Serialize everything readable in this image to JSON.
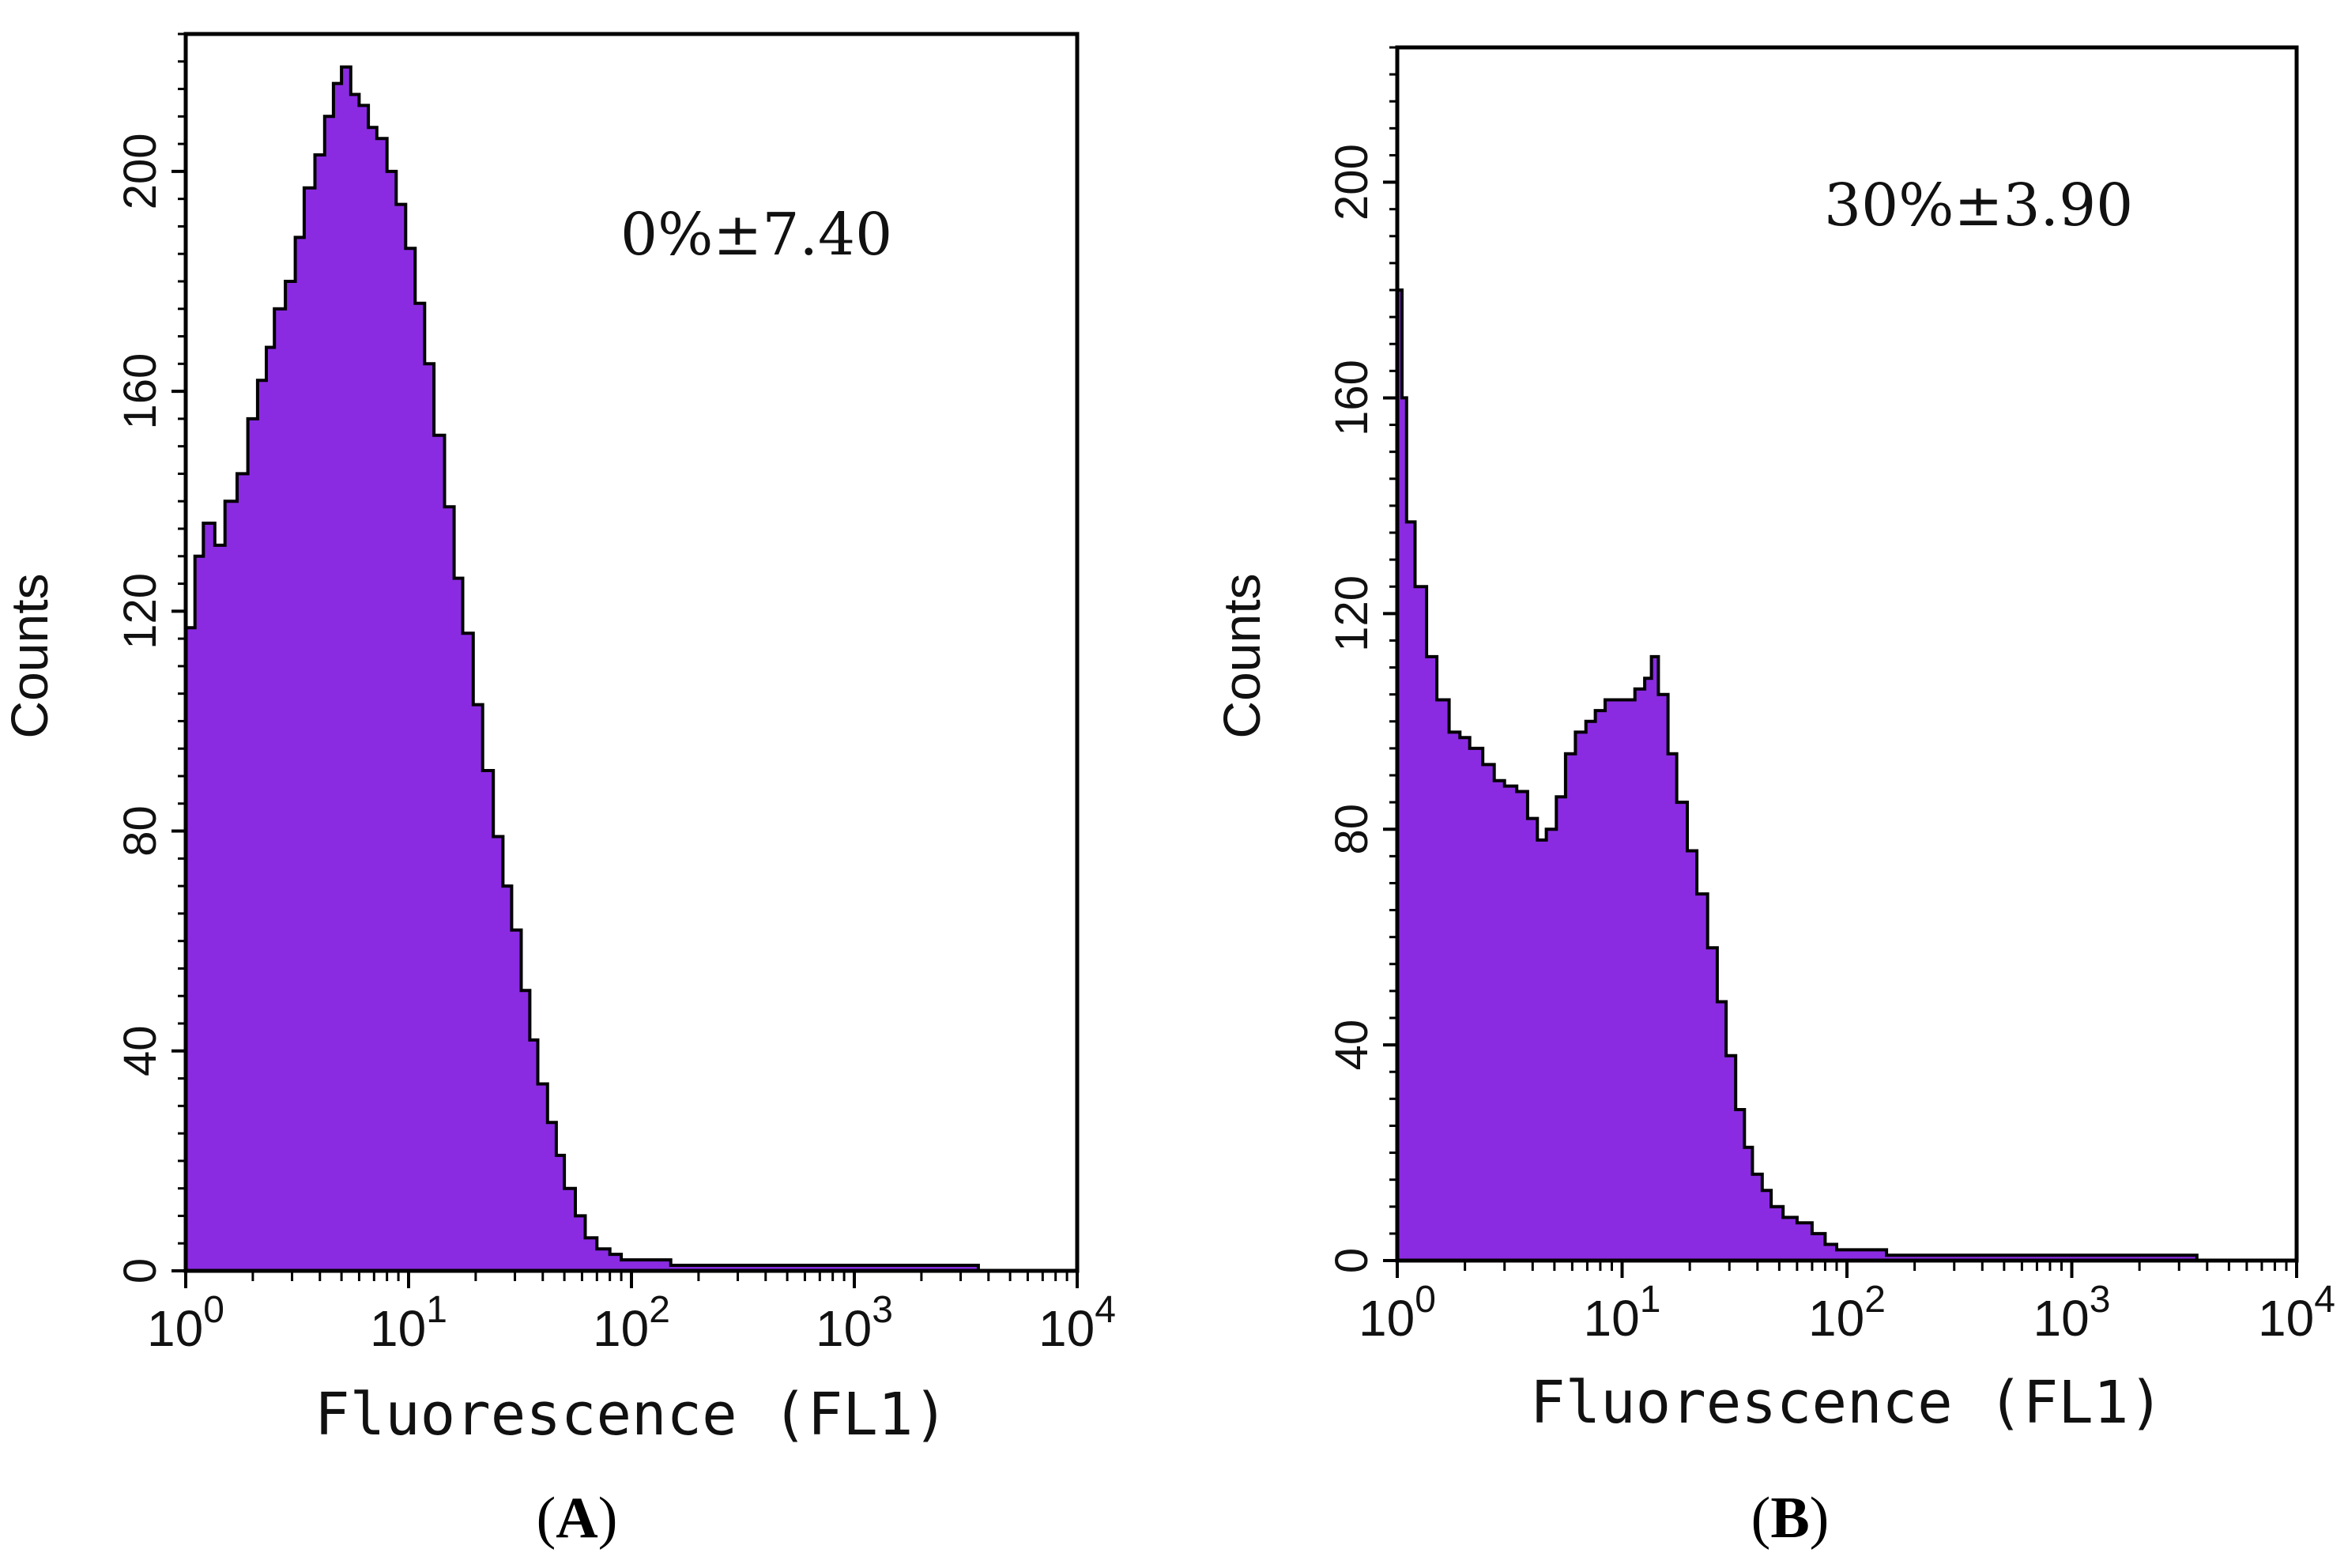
{
  "chart_data": [
    {
      "type": "area",
      "panel_label": "A",
      "title": "",
      "xlabel": "Fluorescence (FL1)",
      "ylabel": "Counts",
      "xscale": "log",
      "xlim": [
        1,
        10000
      ],
      "ylim": [
        0,
        225
      ],
      "x_ticks": [
        {
          "base": "10",
          "exp": "0"
        },
        {
          "base": "10",
          "exp": "1"
        },
        {
          "base": "10",
          "exp": "2"
        },
        {
          "base": "10",
          "exp": "3"
        },
        {
          "base": "10",
          "exp": "4"
        }
      ],
      "y_ticks": [
        "0",
        "40",
        "80",
        "120",
        "160",
        "200"
      ],
      "annotation": "0%±7.40",
      "fill_color": "#8a2be2",
      "edge_color": "#000000",
      "series": [
        {
          "name": "Counts",
          "points": [
            [
              1.0,
              117
            ],
            [
              1.1,
              130
            ],
            [
              1.2,
              136
            ],
            [
              1.35,
              132
            ],
            [
              1.5,
              140
            ],
            [
              1.7,
              145
            ],
            [
              1.9,
              155
            ],
            [
              2.1,
              162
            ],
            [
              2.3,
              168
            ],
            [
              2.5,
              175
            ],
            [
              2.8,
              180
            ],
            [
              3.1,
              188
            ],
            [
              3.4,
              197
            ],
            [
              3.8,
              203
            ],
            [
              4.2,
              210
            ],
            [
              4.6,
              216
            ],
            [
              5.0,
              219
            ],
            [
              5.5,
              214
            ],
            [
              6.0,
              212
            ],
            [
              6.6,
              208
            ],
            [
              7.2,
              206
            ],
            [
              8.0,
              200
            ],
            [
              8.8,
              194
            ],
            [
              9.7,
              186
            ],
            [
              10.7,
              176
            ],
            [
              11.8,
              165
            ],
            [
              13.0,
              152
            ],
            [
              14.5,
              139
            ],
            [
              16.0,
              126
            ],
            [
              17.5,
              116
            ],
            [
              19.5,
              103
            ],
            [
              21.5,
              91
            ],
            [
              24.0,
              79
            ],
            [
              26.5,
              70
            ],
            [
              29.0,
              62
            ],
            [
              32.0,
              51
            ],
            [
              35.0,
              42
            ],
            [
              38.0,
              34
            ],
            [
              42.0,
              27
            ],
            [
              46.0,
              21
            ],
            [
              50.0,
              15
            ],
            [
              56.0,
              10
            ],
            [
              62.0,
              6
            ],
            [
              70.0,
              4
            ],
            [
              80.0,
              3
            ],
            [
              90.0,
              2
            ],
            [
              100.0,
              2
            ],
            [
              150.0,
              1
            ],
            [
              300.0,
              1
            ],
            [
              600.0,
              1
            ],
            [
              1000.0,
              1
            ],
            [
              2000.0,
              1
            ],
            [
              3500.0,
              1
            ],
            [
              3600.0,
              0
            ]
          ]
        }
      ]
    },
    {
      "type": "area",
      "panel_label": "B",
      "title": "",
      "xlabel": "Fluorescence (FL1)",
      "ylabel": "Counts",
      "xscale": "log",
      "xlim": [
        1,
        10000
      ],
      "ylim": [
        0,
        225
      ],
      "x_ticks": [
        {
          "base": "10",
          "exp": "0"
        },
        {
          "base": "10",
          "exp": "1"
        },
        {
          "base": "10",
          "exp": "2"
        },
        {
          "base": "10",
          "exp": "3"
        },
        {
          "base": "10",
          "exp": "4"
        }
      ],
      "y_ticks": [
        "0",
        "40",
        "80",
        "120",
        "160",
        "200"
      ],
      "annotation": "30%±3.90",
      "fill_color": "#8a2be2",
      "edge_color": "#000000",
      "series": [
        {
          "name": "Counts",
          "points": [
            [
              1.0,
              180
            ],
            [
              1.05,
              160
            ],
            [
              1.1,
              137
            ],
            [
              1.2,
              125
            ],
            [
              1.35,
              112
            ],
            [
              1.5,
              104
            ],
            [
              1.7,
              98
            ],
            [
              1.9,
              97
            ],
            [
              2.1,
              95
            ],
            [
              2.4,
              92
            ],
            [
              2.7,
              89
            ],
            [
              3.0,
              88
            ],
            [
              3.4,
              87
            ],
            [
              3.8,
              82
            ],
            [
              4.2,
              78
            ],
            [
              4.6,
              80
            ],
            [
              5.1,
              86
            ],
            [
              5.6,
              94
            ],
            [
              6.2,
              98
            ],
            [
              6.9,
              100
            ],
            [
              7.6,
              102
            ],
            [
              8.4,
              104
            ],
            [
              9.3,
              104
            ],
            [
              10.3,
              104
            ],
            [
              11.4,
              106
            ],
            [
              12.6,
              108
            ],
            [
              13.5,
              112
            ],
            [
              14.5,
              105
            ],
            [
              16.0,
              94
            ],
            [
              17.5,
              85
            ],
            [
              19.5,
              76
            ],
            [
              21.5,
              68
            ],
            [
              24.0,
              58
            ],
            [
              26.5,
              48
            ],
            [
              29.0,
              38
            ],
            [
              32.0,
              28
            ],
            [
              35.0,
              21
            ],
            [
              38.0,
              16
            ],
            [
              42.0,
              13
            ],
            [
              46.0,
              10
            ],
            [
              52.0,
              8
            ],
            [
              60.0,
              7
            ],
            [
              70.0,
              5
            ],
            [
              80.0,
              3
            ],
            [
              90.0,
              2
            ],
            [
              100.0,
              2
            ],
            [
              150.0,
              1
            ],
            [
              300.0,
              1
            ],
            [
              600.0,
              1
            ],
            [
              1000.0,
              1
            ],
            [
              2000.0,
              1
            ],
            [
              3500.0,
              1
            ],
            [
              3600.0,
              0
            ]
          ]
        }
      ]
    }
  ]
}
